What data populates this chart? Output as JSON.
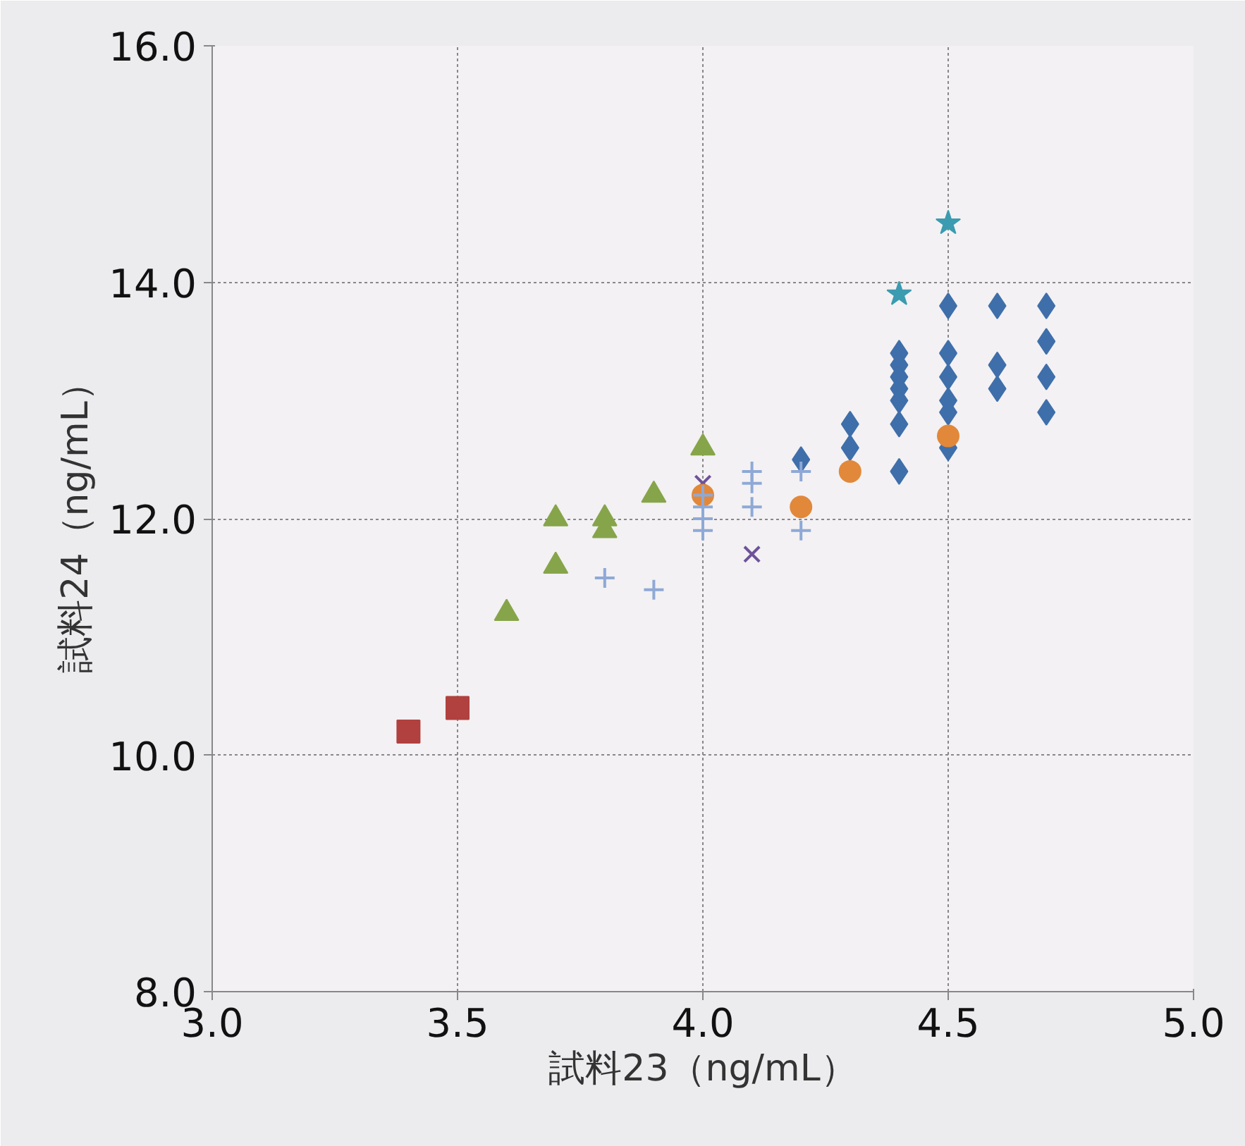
{
  "chart_data": {
    "type": "scatter",
    "xlabel": "試料23（ng/mL）",
    "ylabel": "試料24（ng/mL）",
    "xlim": [
      3.0,
      5.0
    ],
    "ylim": [
      8.0,
      16.0
    ],
    "xticks": [
      {
        "value": 3,
        "label": "3.0"
      },
      {
        "value": 3.5,
        "label": "3.5"
      },
      {
        "value": 4,
        "label": "4.0"
      },
      {
        "value": 4.5,
        "label": "4.5"
      },
      {
        "value": 5,
        "label": "5.0"
      }
    ],
    "yticks": [
      {
        "value": 8,
        "label": "8.0"
      },
      {
        "value": 10,
        "label": "10.0"
      },
      {
        "value": 12,
        "label": "12.0"
      },
      {
        "value": 14,
        "label": "14.0"
      },
      {
        "value": 16,
        "label": "16.0"
      }
    ],
    "grid": true,
    "series": [
      {
        "color": "#3f6faa",
        "marker": "diamond",
        "x": [
          4.2,
          4.3,
          4.3,
          4.4,
          4.4,
          4.4,
          4.4,
          4.4,
          4.4,
          4.4,
          4.5,
          4.5,
          4.5,
          4.5,
          4.5,
          4.5,
          4.6,
          4.6,
          4.6,
          4.7,
          4.7,
          4.7,
          4.7
        ],
        "values": [
          12.5,
          12.8,
          12.6,
          13.4,
          13.3,
          13.2,
          13.1,
          13.0,
          12.8,
          12.4,
          13.8,
          13.4,
          13.2,
          13.0,
          12.9,
          12.6,
          13.8,
          13.3,
          13.1,
          13.8,
          13.5,
          13.2,
          12.9
        ]
      },
      {
        "color": "#b0413e",
        "marker": "square",
        "x": [
          3.4,
          3.5
        ],
        "values": [
          10.2,
          10.4
        ]
      },
      {
        "color": "#86a54a",
        "marker": "triangle",
        "x": [
          3.6,
          3.7,
          3.7,
          3.8,
          3.8,
          3.9,
          4.0
        ],
        "values": [
          11.2,
          12.0,
          11.6,
          12.0,
          11.9,
          12.2,
          12.6
        ]
      },
      {
        "color": "#6e529a",
        "marker": "x",
        "x": [
          4.0,
          4.1
        ],
        "values": [
          12.3,
          11.7
        ]
      },
      {
        "color": "#3b9bb0",
        "marker": "star",
        "x": [
          4.4,
          4.5
        ],
        "values": [
          13.9,
          14.5
        ]
      },
      {
        "color": "#e2883a",
        "marker": "circle",
        "x": [
          4.0,
          4.2,
          4.3,
          4.5
        ],
        "values": [
          12.2,
          12.1,
          12.4,
          12.7
        ]
      },
      {
        "color": "#8ea9d6",
        "marker": "cross",
        "x": [
          3.8,
          3.9,
          4.0,
          4.0,
          4.0,
          4.0,
          4.1,
          4.1,
          4.1,
          4.2,
          4.2
        ],
        "values": [
          11.5,
          11.4,
          12.2,
          12.1,
          12.0,
          11.9,
          12.4,
          12.3,
          12.1,
          12.4,
          11.9
        ]
      }
    ]
  }
}
